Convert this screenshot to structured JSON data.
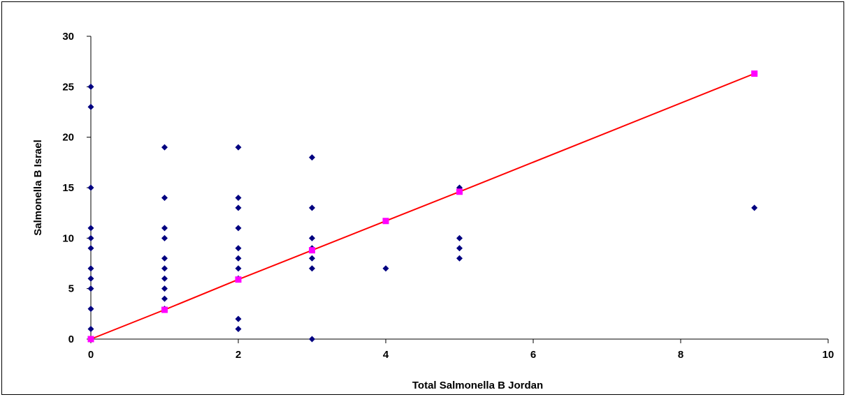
{
  "chart_data": {
    "type": "scatter",
    "title": "",
    "xlabel": "Total Salmonella B Jordan",
    "ylabel": "Salmonella B Israel",
    "xlim": [
      0,
      10
    ],
    "ylim": [
      0,
      30
    ],
    "xticks": [
      0,
      2,
      4,
      6,
      8,
      10
    ],
    "yticks": [
      0,
      5,
      10,
      15,
      20,
      25,
      30
    ],
    "grid": false,
    "legend": "none",
    "colors": {
      "points": "#000080",
      "fit_line": "#ff0000",
      "fit_markers": "#ff00ff"
    },
    "series": [
      {
        "marker": "diamond",
        "points": [
          [
            0,
            25
          ],
          [
            0,
            23
          ],
          [
            0,
            15
          ],
          [
            0,
            11
          ],
          [
            0,
            10
          ],
          [
            0,
            9
          ],
          [
            0,
            7
          ],
          [
            0,
            6
          ],
          [
            0,
            5
          ],
          [
            0,
            3
          ],
          [
            0,
            1
          ],
          [
            0,
            0
          ],
          [
            1,
            19
          ],
          [
            1,
            14
          ],
          [
            1,
            11
          ],
          [
            1,
            10
          ],
          [
            1,
            8
          ],
          [
            1,
            7
          ],
          [
            1,
            6
          ],
          [
            1,
            5
          ],
          [
            1,
            4
          ],
          [
            1,
            3
          ],
          [
            2,
            19
          ],
          [
            2,
            14
          ],
          [
            2,
            13
          ],
          [
            2,
            11
          ],
          [
            2,
            9
          ],
          [
            2,
            8
          ],
          [
            2,
            7
          ],
          [
            2,
            6
          ],
          [
            2,
            2
          ],
          [
            2,
            1
          ],
          [
            3,
            18
          ],
          [
            3,
            13
          ],
          [
            3,
            10
          ],
          [
            3,
            9
          ],
          [
            3,
            8
          ],
          [
            3,
            7
          ],
          [
            3,
            0
          ],
          [
            4,
            7
          ],
          [
            5,
            15
          ],
          [
            5,
            10
          ],
          [
            5,
            9
          ],
          [
            5,
            8
          ],
          [
            9,
            13
          ]
        ]
      },
      {
        "marker": "square",
        "line": true,
        "points": [
          [
            0,
            0
          ],
          [
            1,
            2.9
          ],
          [
            2,
            5.9
          ],
          [
            3,
            8.8
          ],
          [
            4,
            11.7
          ],
          [
            5,
            14.6
          ],
          [
            9,
            26.3
          ]
        ]
      }
    ]
  }
}
